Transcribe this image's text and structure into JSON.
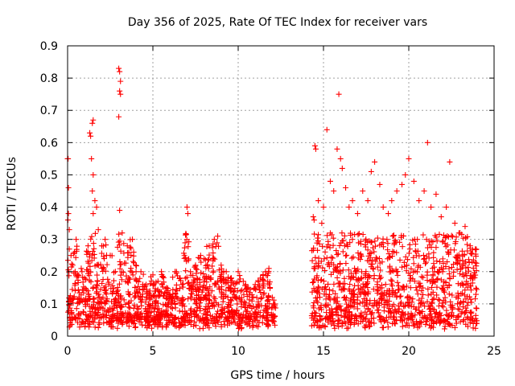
{
  "chart_data": {
    "type": "scatter",
    "title": "Day 356 of 2025, Rate Of TEC Index for receiver vars",
    "xlabel": "GPS time / hours",
    "ylabel": "ROTI / TECUs",
    "xlim": [
      0,
      25
    ],
    "ylim": [
      0,
      0.9
    ],
    "xticks": [
      "0",
      "5",
      "10",
      "15",
      "20",
      "25"
    ],
    "yticks": [
      "0",
      "0.1",
      "0.2",
      "0.3",
      "0.4",
      "0.5",
      "0.6",
      "0.7",
      "0.8",
      "0.9"
    ],
    "grid": true,
    "legend": "none",
    "marker": "+",
    "color": "#ff0000",
    "data_gap_hours": [
      12.2,
      14.3
    ],
    "series": [
      {
        "points": [
          [
            0.0,
            0.55
          ],
          [
            0.03,
            0.55
          ],
          [
            0.05,
            0.46
          ],
          [
            0.05,
            0.38
          ],
          [
            0.02,
            0.36
          ],
          [
            0.1,
            0.33
          ],
          [
            0.1,
            0.27
          ],
          [
            0.2,
            0.25
          ],
          [
            0.3,
            0.22
          ],
          [
            0.4,
            0.26
          ],
          [
            0.5,
            0.3
          ],
          [
            0.6,
            0.19
          ],
          [
            0.8,
            0.21
          ],
          [
            1.0,
            0.18
          ],
          [
            1.2,
            0.28
          ],
          [
            1.3,
            0.63
          ],
          [
            1.35,
            0.62
          ],
          [
            1.5,
            0.67
          ],
          [
            1.45,
            0.66
          ],
          [
            1.4,
            0.55
          ],
          [
            1.5,
            0.5
          ],
          [
            1.45,
            0.45
          ],
          [
            1.6,
            0.42
          ],
          [
            1.7,
            0.4
          ],
          [
            1.5,
            0.38
          ],
          [
            1.8,
            0.33
          ],
          [
            2.0,
            0.28
          ],
          [
            2.2,
            0.3
          ],
          [
            2.5,
            0.25
          ],
          [
            2.8,
            0.2
          ],
          [
            3.0,
            0.83
          ],
          [
            3.05,
            0.82
          ],
          [
            3.1,
            0.79
          ],
          [
            3.05,
            0.76
          ],
          [
            3.1,
            0.75
          ],
          [
            3.0,
            0.68
          ],
          [
            3.05,
            0.39
          ],
          [
            3.2,
            0.32
          ],
          [
            3.5,
            0.28
          ],
          [
            3.8,
            0.3
          ],
          [
            4.0,
            0.22
          ],
          [
            4.3,
            0.2
          ],
          [
            4.6,
            0.16
          ],
          [
            5.0,
            0.19
          ],
          [
            5.3,
            0.17
          ],
          [
            5.5,
            0.2
          ],
          [
            5.8,
            0.15
          ],
          [
            6.0,
            0.13
          ],
          [
            6.3,
            0.2
          ],
          [
            6.6,
            0.18
          ],
          [
            7.0,
            0.4
          ],
          [
            7.05,
            0.38
          ],
          [
            7.2,
            0.2
          ],
          [
            7.5,
            0.22
          ],
          [
            7.8,
            0.25
          ],
          [
            8.0,
            0.24
          ],
          [
            8.3,
            0.28
          ],
          [
            8.6,
            0.3
          ],
          [
            8.8,
            0.31
          ],
          [
            9.0,
            0.22
          ],
          [
            9.3,
            0.2
          ],
          [
            9.6,
            0.18
          ],
          [
            10.0,
            0.2
          ],
          [
            10.3,
            0.17
          ],
          [
            10.6,
            0.15
          ],
          [
            11.0,
            0.16
          ],
          [
            11.3,
            0.18
          ],
          [
            11.6,
            0.2
          ],
          [
            11.8,
            0.21
          ],
          [
            12.0,
            0.12
          ],
          [
            14.4,
            0.37
          ],
          [
            14.45,
            0.36
          ],
          [
            14.5,
            0.59
          ],
          [
            14.55,
            0.58
          ],
          [
            14.7,
            0.42
          ],
          [
            14.9,
            0.35
          ],
          [
            15.0,
            0.4
          ],
          [
            15.2,
            0.64
          ],
          [
            15.4,
            0.48
          ],
          [
            15.6,
            0.45
          ],
          [
            15.8,
            0.58
          ],
          [
            15.9,
            0.75
          ],
          [
            16.0,
            0.55
          ],
          [
            16.1,
            0.52
          ],
          [
            16.3,
            0.46
          ],
          [
            16.5,
            0.4
          ],
          [
            16.7,
            0.42
          ],
          [
            17.0,
            0.38
          ],
          [
            17.3,
            0.45
          ],
          [
            17.6,
            0.42
          ],
          [
            17.8,
            0.51
          ],
          [
            18.0,
            0.54
          ],
          [
            18.3,
            0.47
          ],
          [
            18.5,
            0.4
          ],
          [
            18.8,
            0.38
          ],
          [
            19.0,
            0.42
          ],
          [
            19.3,
            0.45
          ],
          [
            19.6,
            0.47
          ],
          [
            19.8,
            0.5
          ],
          [
            20.0,
            0.55
          ],
          [
            20.3,
            0.48
          ],
          [
            20.6,
            0.42
          ],
          [
            20.9,
            0.45
          ],
          [
            21.1,
            0.6
          ],
          [
            21.3,
            0.4
          ],
          [
            21.6,
            0.44
          ],
          [
            21.9,
            0.37
          ],
          [
            22.2,
            0.4
          ],
          [
            22.4,
            0.54
          ],
          [
            22.7,
            0.35
          ],
          [
            23.0,
            0.32
          ],
          [
            23.3,
            0.34
          ],
          [
            23.6,
            0.28
          ],
          [
            23.9,
            0.27
          ]
        ]
      }
    ]
  }
}
